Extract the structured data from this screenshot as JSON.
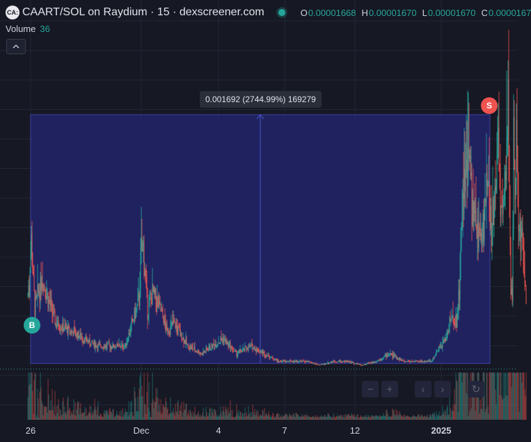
{
  "legend": {
    "logo": "CA:",
    "title": "CAART/SOL on Raydium · 15 · dexscreener.com",
    "ohlc": [
      {
        "k": "O",
        "v": "0.00001668"
      },
      {
        "k": "H",
        "v": "0.00001670"
      },
      {
        "k": "L",
        "v": "0.00001670"
      },
      {
        "k": "C",
        "v": "0.0000167"
      }
    ]
  },
  "volume": {
    "label": "Volume",
    "value": "36"
  },
  "measure": {
    "label": "0.001692 (2744.99%) 169279"
  },
  "markers": {
    "buy": "B",
    "sell": "S"
  },
  "nav": {
    "zoom_out": "−",
    "zoom_in": "+",
    "scroll_left": "‹",
    "scroll_right": "›",
    "reset": "↻"
  },
  "time_axis": [
    {
      "label": "26",
      "bold": false
    },
    {
      "label": "Dec",
      "bold": false
    },
    {
      "label": "4",
      "bold": false
    },
    {
      "label": "7",
      "bold": false
    },
    {
      "label": "12",
      "bold": false
    },
    {
      "label": "2025",
      "bold": true
    }
  ],
  "colors": {
    "up": "#26a69a",
    "down": "#ef5350",
    "measure_fill": "#22256a",
    "background": "#161823"
  },
  "chart_data": {
    "type": "line",
    "description_series": "price",
    "x": [
      0,
      2,
      5,
      10,
      20,
      40,
      60,
      80,
      100,
      120,
      140,
      160,
      162,
      166,
      172,
      180,
      190,
      200,
      210,
      230,
      250,
      280,
      300,
      320,
      340,
      360,
      380,
      400,
      420,
      440,
      460,
      480,
      500,
      520,
      540,
      560,
      580,
      600,
      610,
      616,
      620,
      626,
      632,
      640,
      650,
      656,
      660,
      664,
      670,
      676,
      680,
      686,
      690,
      694,
      696,
      698,
      700,
      702,
      704,
      706,
      708,
      710,
      712,
      714,
      716
    ],
    "y": [
      9.7e-07,
      1.1e-06,
      1.7e-06,
      8e-07,
      1.2e-06,
      6e-07,
      5e-07,
      4e-07,
      3e-07,
      3e-07,
      3e-07,
      9e-07,
      1.5e-06,
      1.6e-06,
      8e-07,
      1e-06,
      8e-07,
      5e-07,
      6e-07,
      3e-07,
      2e-07,
      4e-07,
      2e-07,
      3e-07,
      2e-07,
      1e-07,
      1e-07,
      1e-07,
      5e-08,
      1e-07,
      1e-07,
      5e-08,
      1e-07,
      2e-07,
      1e-07,
      1e-07,
      1e-07,
      4e-07,
      7e-07,
      6e-07,
      1e-06,
      2.6e-06,
      3e-06,
      2e-06,
      1.7e-06,
      2e-06,
      2.5e-06,
      1.8e-06,
      2e-06,
      3e-06,
      2e-06,
      2.4e-06,
      3.5e-06,
      1e-06,
      1e-06,
      3e-06,
      2.5e-06,
      3e-06,
      2.05e-06,
      2e-06,
      1.7e-06,
      1.8e-06,
      1.5e-06,
      1.2e-06,
      1e-06
    ]
  }
}
